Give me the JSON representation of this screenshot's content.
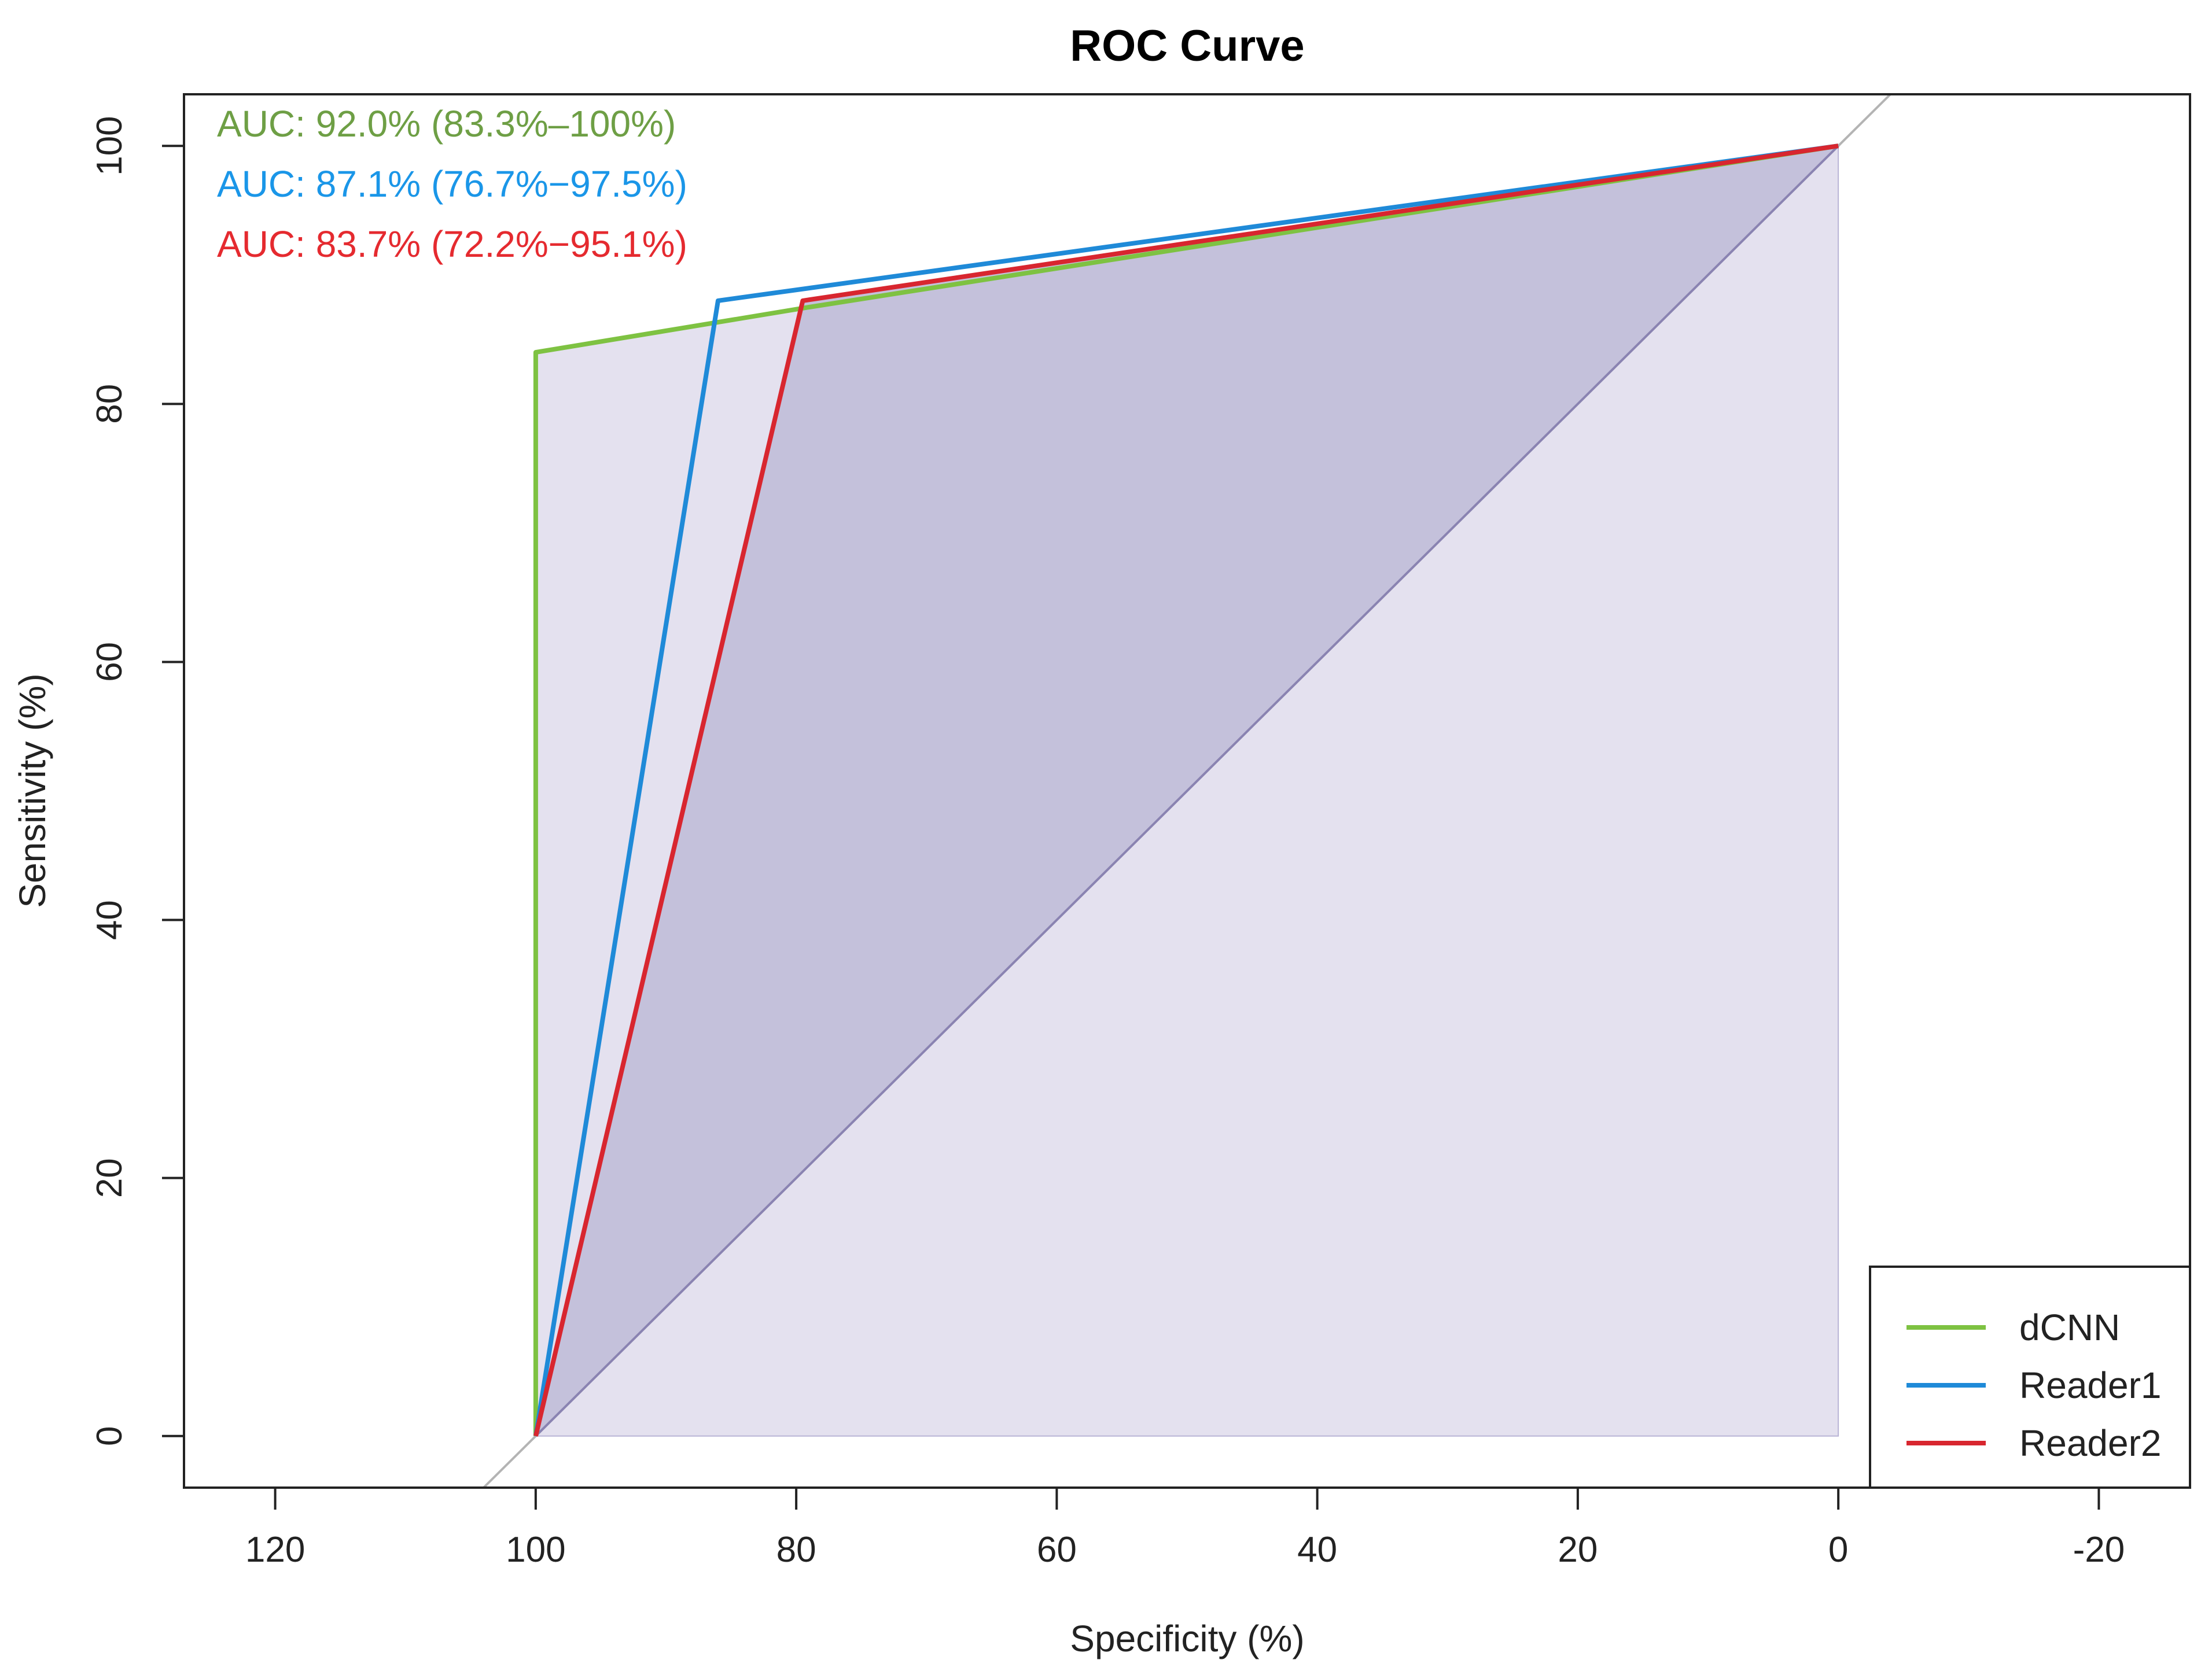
{
  "chart_data": {
    "type": "line",
    "title": "ROC Curve",
    "xlabel": "Specificity (%)",
    "ylabel": "Sensitivity (%)",
    "xlim": [
      127,
      -27
    ],
    "ylim": [
      -4,
      104
    ],
    "xticks": [
      120,
      100,
      80,
      60,
      40,
      20,
      0,
      -20
    ],
    "yticks": [
      0,
      20,
      40,
      60,
      80,
      100
    ],
    "grid": false,
    "legend_position": "bottom-right",
    "diagonal": {
      "from": [
        100,
        0
      ],
      "to": [
        0,
        100
      ],
      "color": "#b4b4b4"
    },
    "shaded_areas": [
      {
        "name": "dCNN area",
        "color": "#e4e1ef",
        "polygon": [
          [
            100,
            0
          ],
          [
            100,
            84
          ],
          [
            79,
            87.5
          ],
          [
            0,
            100
          ],
          [
            0,
            0
          ]
        ]
      },
      {
        "name": "Reader2 area",
        "color": "#c4c1db",
        "polygon": [
          [
            100,
            0
          ],
          [
            79.5,
            88
          ],
          [
            0,
            100
          ]
        ]
      }
    ],
    "series": [
      {
        "name": "dCNN",
        "color": "#7ec242",
        "text_color": "#6e9f45",
        "auc_label": "AUC: 92.0% (83.3%–100%)",
        "points": [
          [
            100,
            0
          ],
          [
            100,
            84
          ],
          [
            79,
            87.5
          ],
          [
            0,
            100
          ]
        ]
      },
      {
        "name": "Reader1",
        "color": "#1f8ad8",
        "text_color": "#1a96e8",
        "auc_label": "AUC: 87.1% (76.7%−97.5%)",
        "points": [
          [
            100,
            0
          ],
          [
            86,
            88
          ],
          [
            0,
            100
          ]
        ]
      },
      {
        "name": "Reader2",
        "color": "#d8262f",
        "text_color": "#e52a2f",
        "auc_label": "AUC: 83.7% (72.2%−95.1%)",
        "points": [
          [
            100,
            0
          ],
          [
            79.5,
            88
          ],
          [
            0,
            100
          ]
        ]
      }
    ]
  }
}
